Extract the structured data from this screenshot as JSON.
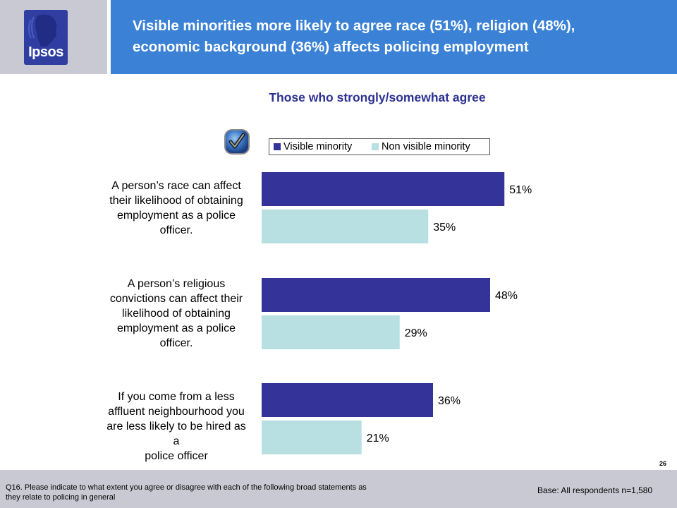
{
  "header": {
    "logo_text": "Ipsos",
    "title_line1": "Visible minorities more likely to agree race (51%), religion (48%),",
    "title_line2": "economic background (36%) affects policing employment"
  },
  "colors": {
    "header_blue": "#3b82d6",
    "side_gray": "#c9c9d3",
    "visible_minority": "#333399",
    "non_visible_minority": "#b8e0e2",
    "subtitle_color": "#2e3192"
  },
  "icons": {
    "checkmark": "checkmark-badge-icon"
  },
  "chart_data": {
    "type": "bar",
    "orientation": "horizontal",
    "title": "Those who strongly/somewhat agree",
    "categories": [
      "A person’s race can affect their likelihood of obtaining employment as a police officer.",
      "A person’s religious convictions can affect their likelihood of obtaining employment as a police officer.",
      "If you come from a less affluent neighbourhood you are less likely to be hired as a police officer"
    ],
    "category_lines": [
      [
        "A person’s race can affect",
        "their likelihood of obtaining",
        "employment as a police",
        "officer."
      ],
      [
        "A person’s religious",
        "convictions can affect their",
        "likelihood of obtaining",
        "employment as a police",
        "officer."
      ],
      [
        "If you come from a less",
        "affluent neighbourhood you",
        "are less likely to be hired as a",
        "police officer"
      ]
    ],
    "series": [
      {
        "name": "Visible minority",
        "values": [
          51,
          48,
          36
        ],
        "labels": [
          "51%",
          "48%",
          "36%"
        ]
      },
      {
        "name": "Non visible minority",
        "values": [
          35,
          29,
          21
        ],
        "labels": [
          "35%",
          "29%",
          "21%"
        ]
      }
    ],
    "xlim": [
      0,
      100
    ],
    "legend": "top",
    "grid": false
  },
  "footer": {
    "page_number": "26",
    "question": "Q16. Please indicate to what extent you agree or disagree with each of the following broad statements as they relate to policing in general",
    "base": "Base: All respondents n=1,580"
  }
}
